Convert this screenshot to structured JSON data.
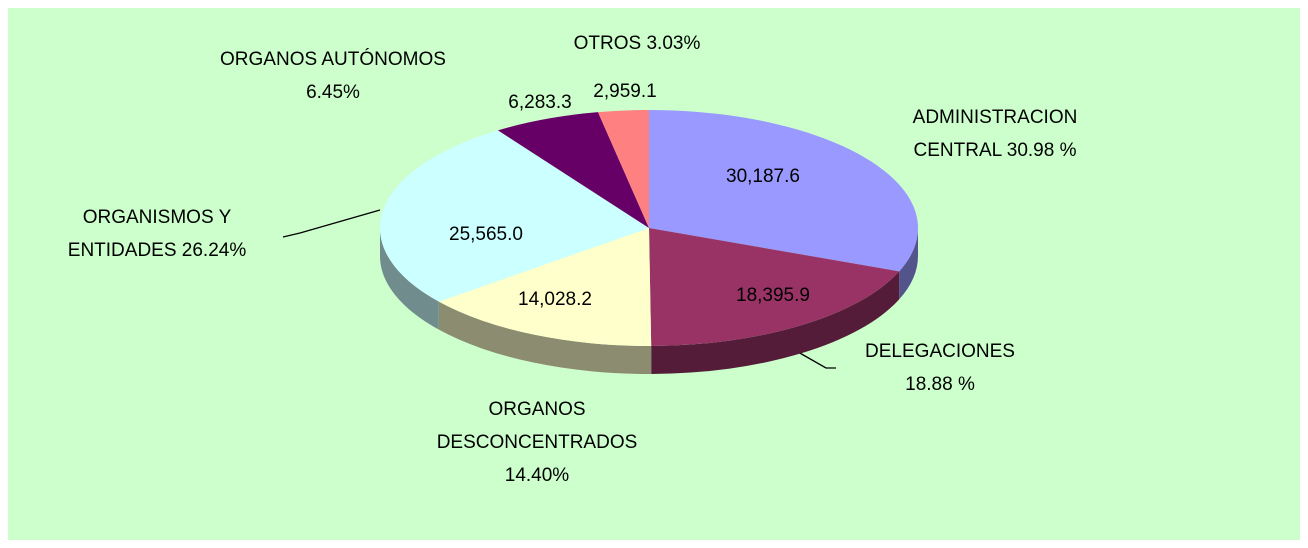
{
  "chart_data": {
    "type": "pie3d",
    "categories": [
      [
        "ADMINISTRACION",
        "CENTRAL  30.98 %"
      ],
      [
        "DELEGACIONES",
        "18.88 %"
      ],
      [
        "ORGANOS",
        "DESCONCENTRADOS",
        "14.40%"
      ],
      [
        "ORGANISMOS Y",
        "ENTIDADES  26.24%"
      ],
      [
        "ORGANOS AUTÓNOMOS",
        "6.45%"
      ],
      [
        "OTROS 3.03%"
      ]
    ],
    "values": [
      30187.6,
      18395.9,
      14028.2,
      25565.0,
      6283.3,
      2959.1
    ],
    "value_labels": [
      "30,187.6",
      "18,395.9",
      "14,028.2",
      "25,565.0",
      "6,283.3",
      "2,959.1"
    ],
    "colors": [
      "#9999ff",
      "#993366",
      "#ffffcc",
      "#ccffff",
      "#660066",
      "#ff8080"
    ]
  }
}
